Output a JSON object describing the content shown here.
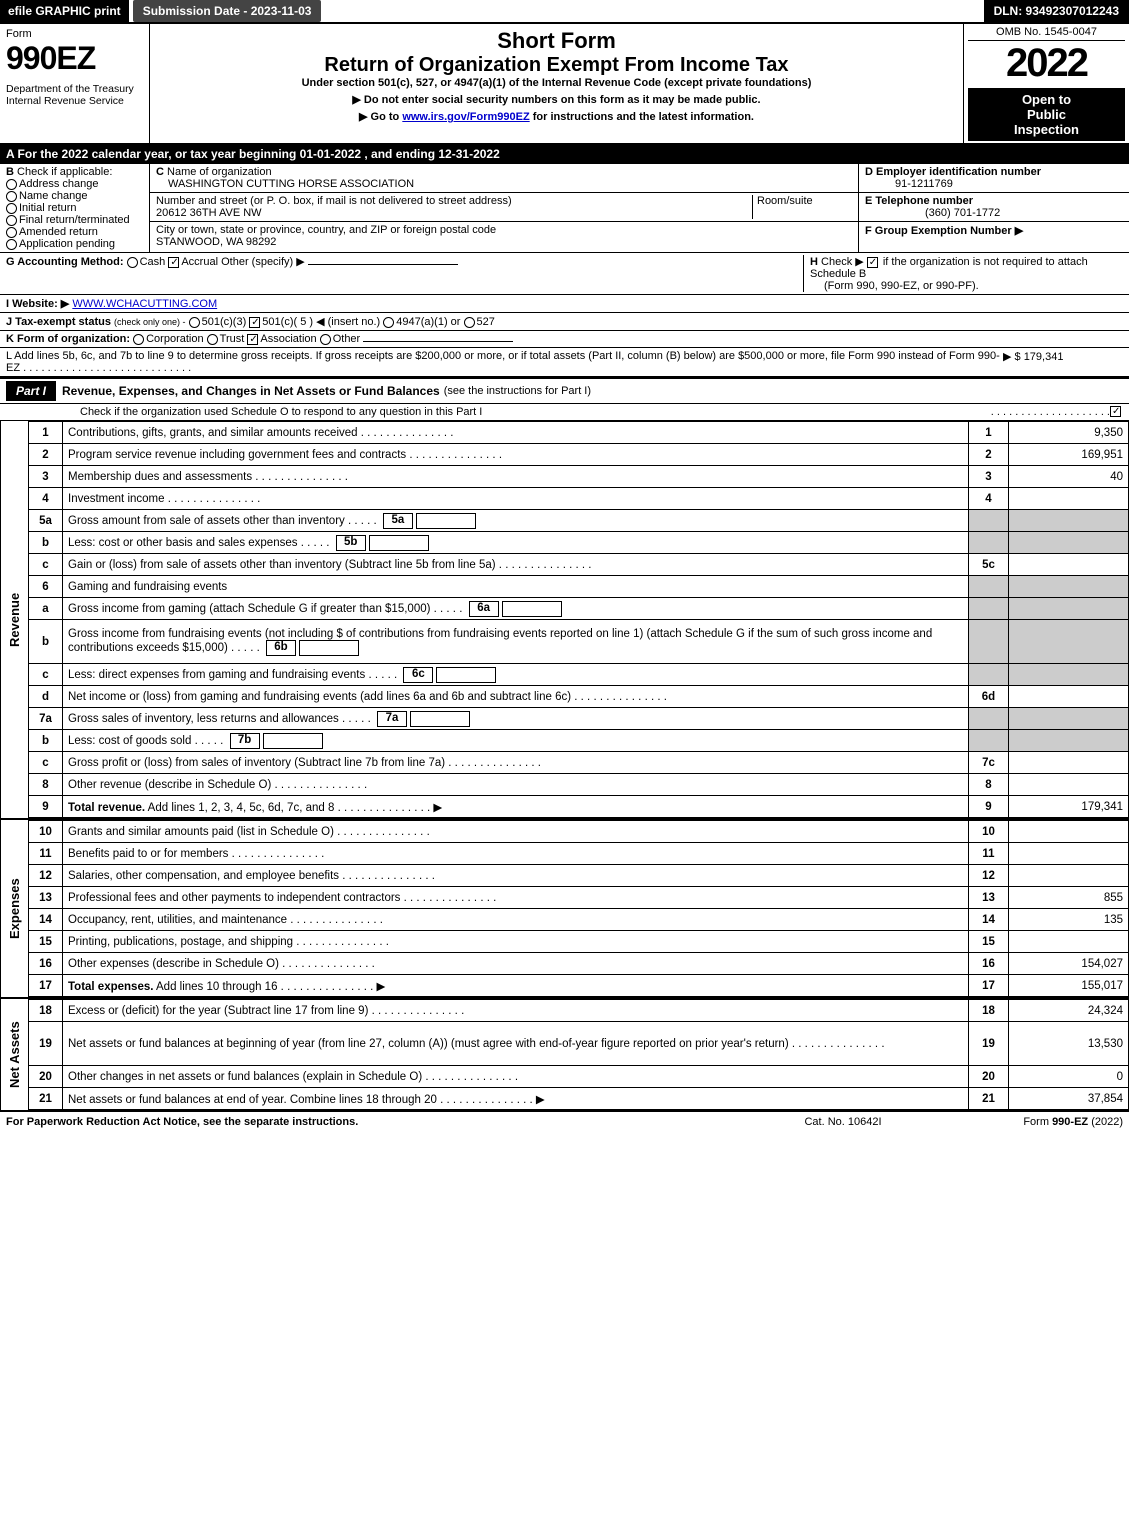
{
  "topbar": {
    "efile": "efile GRAPHIC print",
    "subdate": "Submission Date - 2023-11-03",
    "dln": "DLN: 93492307012243"
  },
  "header": {
    "form_label": "Form",
    "form_number": "990EZ",
    "dept1": "Department of the Treasury",
    "dept2": "Internal Revenue Service",
    "short_form": "Short Form",
    "title": "Return of Organization Exempt From Income Tax",
    "under": "Under section 501(c), 527, or 4947(a)(1) of the Internal Revenue Code (except private foundations)",
    "note1": "▶ Do not enter social security numbers on this form as it may be made public.",
    "note2_pre": "▶ Go to ",
    "note2_link": "www.irs.gov/Form990EZ",
    "note2_post": " for instructions and the latest information.",
    "omb": "OMB No. 1545-0047",
    "year": "2022",
    "open1": "Open to",
    "open2": "Public",
    "open3": "Inspection"
  },
  "row_a": "A  For the 2022 calendar year, or tax year beginning 01-01-2022  , and ending 12-31-2022",
  "section_b": {
    "label": "B",
    "check_if": "Check if applicable:",
    "opts": [
      "Address change",
      "Name change",
      "Initial return",
      "Final return/terminated",
      "Amended return",
      "Application pending"
    ]
  },
  "section_c": {
    "c_label": "C",
    "name_label": "Name of organization",
    "name": "WASHINGTON CUTTING HORSE ASSOCIATION",
    "addr_label": "Number and street (or P. O. box, if mail is not delivered to street address)",
    "addr": "20612 36TH AVE NW",
    "room_label": "Room/suite",
    "city_label": "City or town, state or province, country, and ZIP or foreign postal code",
    "city": "STANWOOD, WA  98292"
  },
  "section_d": {
    "d_label": "D Employer identification number",
    "ein": "91-1211769",
    "e_label": "E Telephone number",
    "phone": "(360) 701-1772",
    "f_label": "F Group Exemption Number  ▶"
  },
  "row_g": {
    "label": "G Accounting Method:",
    "cash": "Cash",
    "accrual": "Accrual",
    "other": "Other (specify) ▶"
  },
  "row_h": {
    "label": "H",
    "text1": "Check ▶",
    "text2": "if the organization is not required to attach Schedule B",
    "text3": "(Form 990, 990-EZ, or 990-PF)."
  },
  "row_i": {
    "label": "I Website: ▶",
    "url": "WWW.WCHACUTTING.COM"
  },
  "row_j": {
    "label": "J Tax-exempt status",
    "sub": "(check only one) -",
    "o1": "501(c)(3)",
    "o2": "501(c)( 5 ) ◀ (insert no.)",
    "o3": "4947(a)(1) or",
    "o4": "527"
  },
  "row_k": {
    "label": "K Form of organization:",
    "o1": "Corporation",
    "o2": "Trust",
    "o3": "Association",
    "o4": "Other"
  },
  "row_l": {
    "text": "L Add lines 5b, 6c, and 7b to line 9 to determine gross receipts. If gross receipts are $200,000 or more, or if total assets (Part II, column (B) below) are $500,000 or more, file Form 990 instead of Form 990-EZ",
    "amount": "▶ $ 179,341"
  },
  "part1": {
    "tab": "Part I",
    "title": "Revenue, Expenses, and Changes in Net Assets or Fund Balances",
    "sub": "(see the instructions for Part I)",
    "check_note": "Check if the organization used Schedule O to respond to any question in this Part I"
  },
  "revenue": {
    "side": "Revenue",
    "rows": [
      {
        "n": "1",
        "t": "Contributions, gifts, grants, and similar amounts received",
        "rn": "1",
        "amt": "9,350"
      },
      {
        "n": "2",
        "t": "Program service revenue including government fees and contracts",
        "rn": "2",
        "amt": "169,951"
      },
      {
        "n": "3",
        "t": "Membership dues and assessments",
        "rn": "3",
        "amt": "40"
      },
      {
        "n": "4",
        "t": "Investment income",
        "rn": "4",
        "amt": ""
      },
      {
        "n": "5a",
        "t": "Gross amount from sale of assets other than inventory",
        "box": "5a",
        "rn": "",
        "amt": "",
        "gray": true
      },
      {
        "n": "b",
        "t": "Less: cost or other basis and sales expenses",
        "box": "5b",
        "rn": "",
        "amt": "",
        "gray": true
      },
      {
        "n": "c",
        "t": "Gain or (loss) from sale of assets other than inventory (Subtract line 5b from line 5a)",
        "rn": "5c",
        "amt": ""
      },
      {
        "n": "6",
        "t": "Gaming and fundraising events",
        "rn": "",
        "amt": "",
        "gray": true,
        "nobox": true
      },
      {
        "n": "a",
        "t": "Gross income from gaming (attach Schedule G if greater than $15,000)",
        "box": "6a",
        "rn": "",
        "amt": "",
        "gray": true
      },
      {
        "n": "b",
        "t": "Gross income from fundraising events (not including $                  of contributions from fundraising events reported on line 1) (attach Schedule G if the sum of such gross income and contributions exceeds $15,000)",
        "box": "6b",
        "rn": "",
        "amt": "",
        "gray": true,
        "tall": true
      },
      {
        "n": "c",
        "t": "Less: direct expenses from gaming and fundraising events",
        "box": "6c",
        "rn": "",
        "amt": "",
        "gray": true
      },
      {
        "n": "d",
        "t": "Net income or (loss) from gaming and fundraising events (add lines 6a and 6b and subtract line 6c)",
        "rn": "6d",
        "amt": ""
      },
      {
        "n": "7a",
        "t": "Gross sales of inventory, less returns and allowances",
        "box": "7a",
        "rn": "",
        "amt": "",
        "gray": true
      },
      {
        "n": "b",
        "t": "Less: cost of goods sold",
        "box": "7b",
        "rn": "",
        "amt": "",
        "gray": true
      },
      {
        "n": "c",
        "t": "Gross profit or (loss) from sales of inventory (Subtract line 7b from line 7a)",
        "rn": "7c",
        "amt": ""
      },
      {
        "n": "8",
        "t": "Other revenue (describe in Schedule O)",
        "rn": "8",
        "amt": ""
      },
      {
        "n": "9",
        "t": "Total revenue. Add lines 1, 2, 3, 4, 5c, 6d, 7c, and 8",
        "rn": "9",
        "amt": "179,341",
        "bold": true,
        "arrow": true
      }
    ]
  },
  "expenses": {
    "side": "Expenses",
    "rows": [
      {
        "n": "10",
        "t": "Grants and similar amounts paid (list in Schedule O)",
        "rn": "10",
        "amt": ""
      },
      {
        "n": "11",
        "t": "Benefits paid to or for members",
        "rn": "11",
        "amt": ""
      },
      {
        "n": "12",
        "t": "Salaries, other compensation, and employee benefits",
        "rn": "12",
        "amt": ""
      },
      {
        "n": "13",
        "t": "Professional fees and other payments to independent contractors",
        "rn": "13",
        "amt": "855"
      },
      {
        "n": "14",
        "t": "Occupancy, rent, utilities, and maintenance",
        "rn": "14",
        "amt": "135"
      },
      {
        "n": "15",
        "t": "Printing, publications, postage, and shipping",
        "rn": "15",
        "amt": ""
      },
      {
        "n": "16",
        "t": "Other expenses (describe in Schedule O)",
        "rn": "16",
        "amt": "154,027"
      },
      {
        "n": "17",
        "t": "Total expenses. Add lines 10 through 16",
        "rn": "17",
        "amt": "155,017",
        "bold": true,
        "arrow": true
      }
    ]
  },
  "netassets": {
    "side": "Net Assets",
    "rows": [
      {
        "n": "18",
        "t": "Excess or (deficit) for the year (Subtract line 17 from line 9)",
        "rn": "18",
        "amt": "24,324"
      },
      {
        "n": "19",
        "t": "Net assets or fund balances at beginning of year (from line 27, column (A)) (must agree with end-of-year figure reported on prior year's return)",
        "rn": "19",
        "amt": "13,530",
        "tall": true
      },
      {
        "n": "20",
        "t": "Other changes in net assets or fund balances (explain in Schedule O)",
        "rn": "20",
        "amt": "0"
      },
      {
        "n": "21",
        "t": "Net assets or fund balances at end of year. Combine lines 18 through 20",
        "rn": "21",
        "amt": "37,854",
        "arrow": true
      }
    ]
  },
  "footer": {
    "left": "For Paperwork Reduction Act Notice, see the separate instructions.",
    "center": "Cat. No. 10642I",
    "right_pre": "Form ",
    "right_form": "990-EZ",
    "right_post": " (2022)"
  },
  "colors": {
    "black": "#000000",
    "gray_cell": "#cccccc",
    "link": "#0000cc"
  }
}
